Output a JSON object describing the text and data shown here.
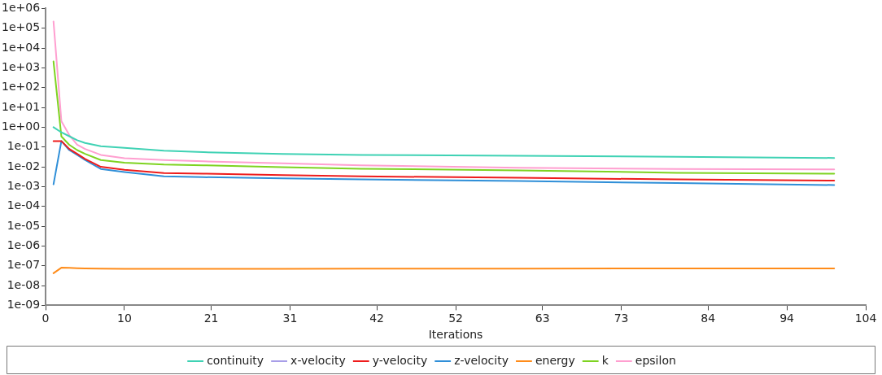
{
  "chart_data": {
    "type": "line",
    "xlabel": "Iterations",
    "log": "y",
    "legend": "bottom",
    "x": [
      1,
      2,
      3,
      4,
      5,
      7,
      10,
      15,
      20,
      30,
      40,
      60,
      80,
      100
    ],
    "xlim": [
      0,
      104
    ],
    "xticks": [
      0,
      10,
      21,
      31,
      42,
      52,
      63,
      73,
      84,
      94,
      104
    ],
    "ylim": [
      1e-09,
      1000000.0
    ],
    "yticks": [
      {
        "value": 1000000.0,
        "label": "1e+06"
      },
      {
        "value": 100000.0,
        "label": "1e+05"
      },
      {
        "value": 10000.0,
        "label": "1e+04"
      },
      {
        "value": 1000.0,
        "label": "1e+03"
      },
      {
        "value": 100.0,
        "label": "1e+02"
      },
      {
        "value": 10,
        "label": "1e+01"
      },
      {
        "value": 1,
        "label": "1e+00"
      },
      {
        "value": 0.1,
        "label": "1e-01"
      },
      {
        "value": 0.01,
        "label": "1e-02"
      },
      {
        "value": 0.001,
        "label": "1e-03"
      },
      {
        "value": 0.0001,
        "label": "1e-04"
      },
      {
        "value": 1e-05,
        "label": "1e-05"
      },
      {
        "value": 1e-06,
        "label": "1e-06"
      },
      {
        "value": 1e-07,
        "label": "1e-07"
      },
      {
        "value": 1e-08,
        "label": "1e-08"
      },
      {
        "value": 1e-09,
        "label": "1e-09"
      }
    ],
    "series": [
      {
        "name": "continuity",
        "color": "#3fd2b4",
        "values": [
          1.0,
          0.55,
          0.35,
          0.22,
          0.16,
          0.11,
          0.09,
          0.065,
          0.055,
          0.045,
          0.04,
          0.036,
          0.032,
          0.028
        ]
      },
      {
        "name": "x-velocity",
        "color": "#a89ee8",
        "values": [
          null,
          null,
          null,
          null,
          null,
          null,
          null,
          null,
          null,
          null,
          null,
          null,
          null,
          null
        ]
      },
      {
        "name": "y-velocity",
        "color": "#ee1c1c",
        "values": [
          0.2,
          0.2,
          0.08,
          0.045,
          0.025,
          0.01,
          0.007,
          0.0048,
          0.0045,
          0.0038,
          0.0033,
          0.0028,
          0.0023,
          0.002
        ]
      },
      {
        "name": "z-velocity",
        "color": "#2f8fd8",
        "values": [
          0.0013,
          0.2,
          0.07,
          0.04,
          0.022,
          0.0078,
          0.0055,
          0.0033,
          0.003,
          0.0026,
          0.0023,
          0.0019,
          0.0015,
          0.0012
        ]
      },
      {
        "name": "energy",
        "color": "#ff8c1a",
        "values": [
          4.2e-08,
          8e-08,
          7.8e-08,
          7.6e-08,
          7.4e-08,
          7.2e-08,
          7e-08,
          7e-08,
          7e-08,
          7e-08,
          7.1e-08,
          7.2e-08,
          7.3e-08,
          7.4e-08
        ]
      },
      {
        "name": "k",
        "color": "#7ed321",
        "values": [
          2100,
          0.34,
          0.13,
          0.07,
          0.045,
          0.022,
          0.016,
          0.013,
          0.012,
          0.0095,
          0.008,
          0.0066,
          0.005,
          0.0045
        ]
      },
      {
        "name": "epsilon",
        "color": "#ff9fd0",
        "values": [
          220000.0,
          2,
          0.4,
          0.13,
          0.08,
          0.04,
          0.027,
          0.022,
          0.019,
          0.015,
          0.012,
          0.009,
          0.0078,
          0.0074
        ]
      }
    ]
  }
}
